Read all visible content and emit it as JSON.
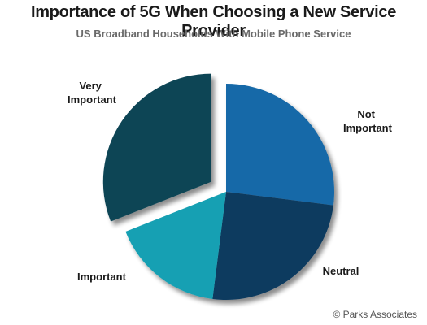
{
  "chart_data": {
    "type": "pie",
    "title": "Importance of 5G When Choosing a New Service Provider",
    "subtitle": "US Broadband Households With Mobile Phone Service",
    "slices": [
      {
        "label": "Not Important",
        "value": 27,
        "color": "#1569a8"
      },
      {
        "label": "Neutral",
        "value": 25,
        "color": "#0e3a5e"
      },
      {
        "label": "Important",
        "value": 17,
        "color": "#17a0b3"
      },
      {
        "label": "Very Important",
        "value": 31,
        "color": "#0f4555",
        "exploded": true
      }
    ],
    "start_angle_deg": 0,
    "legend": "none"
  },
  "footer": {
    "copyright": "© Parks Associates"
  }
}
